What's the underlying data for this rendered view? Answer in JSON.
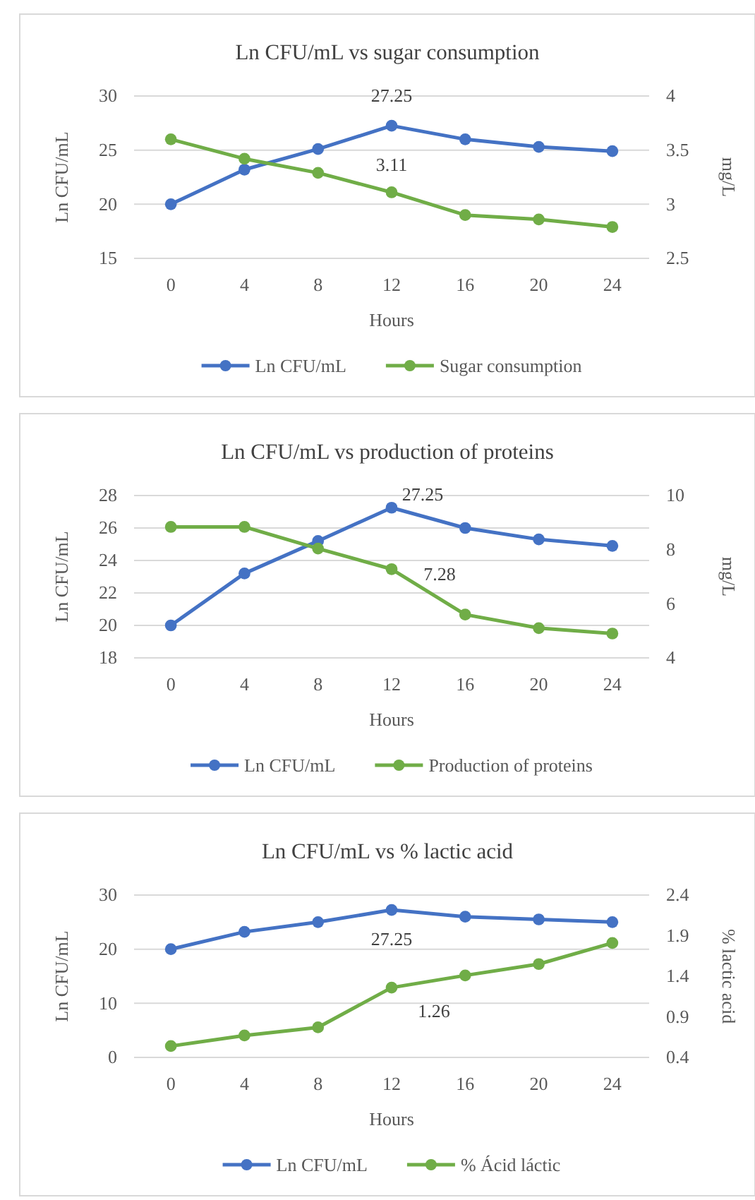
{
  "chart_data": [
    {
      "type": "line",
      "title": "Ln CFU/mL vs sugar consumption",
      "xlabel": "Hours",
      "ylabel": "Ln CFU/mL",
      "y2label": "mg/L",
      "categories": [
        "0",
        "4",
        "8",
        "12",
        "16",
        "20",
        "24"
      ],
      "ylim": [
        15,
        30
      ],
      "yticks": [
        15,
        20,
        25,
        30
      ],
      "y2lim": [
        2.5,
        4
      ],
      "y2ticks": [
        2.5,
        3,
        3.5,
        4
      ],
      "grid": "y",
      "legend": "bottom",
      "marker": "circle",
      "series": [
        {
          "name": "Ln CFU/mL",
          "color": "#4472c4",
          "values": [
            20,
            23.2,
            25.1,
            27.25,
            26,
            25.3,
            24.9
          ],
          "value_labels": [
            null,
            null,
            null,
            "27.25",
            null,
            null,
            null
          ]
        },
        {
          "name": "Sugar consumption",
          "color": "#70ad47",
          "axis": "y2",
          "values": [
            3.6,
            3.42,
            3.29,
            3.11,
            2.9,
            2.86,
            2.79
          ],
          "value_labels": [
            null,
            null,
            null,
            "3.11",
            null,
            null,
            null
          ]
        }
      ]
    },
    {
      "type": "line",
      "title": "Ln CFU/mL vs production of proteins",
      "xlabel": "Hours",
      "ylabel": "Ln CFU/mL",
      "y2label": "mg/L",
      "categories": [
        "0",
        "4",
        "8",
        "12",
        "16",
        "20",
        "24"
      ],
      "ylim": [
        18,
        28
      ],
      "yticks": [
        18,
        20,
        22,
        24,
        26,
        28
      ],
      "y2lim": [
        4,
        10
      ],
      "y2ticks": [
        4,
        6,
        8,
        10
      ],
      "grid": "y",
      "legend": "bottom",
      "marker": "circle",
      "series": [
        {
          "name": "Ln CFU/mL",
          "color": "#4472c4",
          "values": [
            20,
            23.2,
            25.2,
            27.25,
            26,
            25.3,
            24.9
          ],
          "value_labels": [
            null,
            null,
            null,
            "27.25",
            null,
            null,
            null
          ]
        },
        {
          "name": "Production of proteins",
          "color": "#70ad47",
          "axis": "y2",
          "values": [
            8.84,
            8.84,
            8.04,
            7.28,
            5.6,
            5.1,
            4.9
          ],
          "value_labels": [
            null,
            null,
            null,
            "7.28",
            null,
            null,
            null
          ]
        }
      ]
    },
    {
      "type": "line",
      "title": "Ln CFU/mL vs % lactic acid",
      "xlabel": "Hours",
      "ylabel": "Ln CFU/mL",
      "y2label": "% lactic acid",
      "categories": [
        "0",
        "4",
        "8",
        "12",
        "16",
        "20",
        "24"
      ],
      "ylim": [
        0,
        30
      ],
      "yticks": [
        0,
        10,
        20,
        30
      ],
      "y2lim": [
        0.4,
        2.4
      ],
      "y2ticks": [
        0.4,
        0.9,
        1.4,
        1.9,
        2.4
      ],
      "grid": "y",
      "legend": "bottom",
      "marker": "circle",
      "series": [
        {
          "name": "Ln CFU/mL",
          "color": "#4472c4",
          "values": [
            20,
            23.2,
            25,
            27.25,
            26,
            25.5,
            25
          ],
          "value_labels": [
            null,
            null,
            null,
            "27.25",
            null,
            null,
            null
          ]
        },
        {
          "name": "% Ácid láctic",
          "color": "#70ad47",
          "axis": "y2",
          "values": [
            0.54,
            0.67,
            0.77,
            1.26,
            1.41,
            1.55,
            1.81
          ],
          "value_labels": [
            null,
            null,
            null,
            "1.26",
            null,
            null,
            null
          ]
        }
      ]
    }
  ]
}
